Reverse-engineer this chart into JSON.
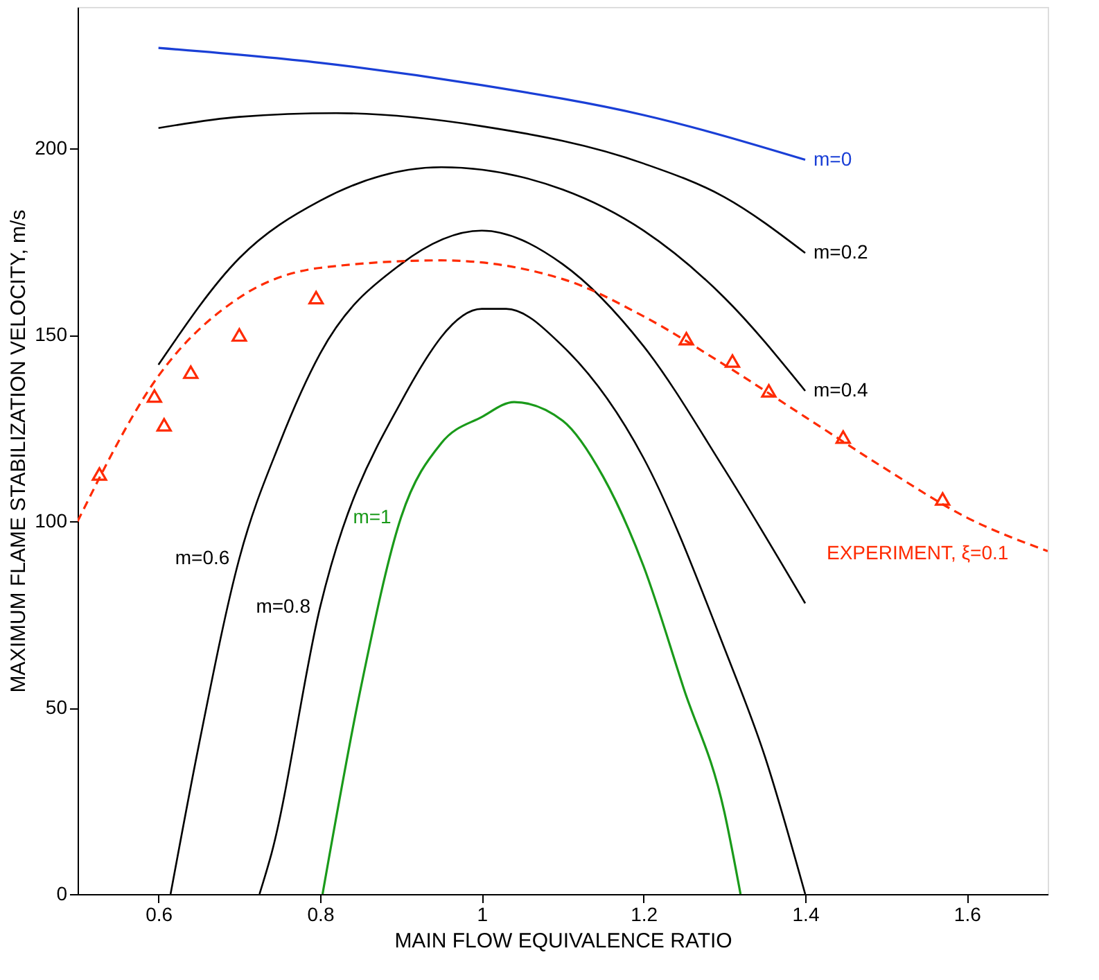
{
  "chart_data": {
    "type": "line",
    "xlabel": "MAIN FLOW EQUIVALENCE RATIO",
    "ylabel": "MAXIMUM FLAME STABILIZATION VELOCITY, m/s",
    "xlim": [
      0.5,
      1.7
    ],
    "ylim": [
      0,
      238
    ],
    "xticks": [
      0.6,
      0.8,
      1,
      1.2,
      1.4,
      1.6
    ],
    "yticks": [
      0,
      50,
      100,
      150,
      200
    ],
    "grid": false,
    "series": [
      {
        "name": "m=0",
        "color": "#1a3fd6",
        "line_style": "solid",
        "x": [
          0.6,
          0.8,
          1.0,
          1.2,
          1.4
        ],
        "values": [
          227,
          223,
          217,
          209,
          197
        ]
      },
      {
        "name": "m=0.2",
        "color": "#000000",
        "line_style": "solid",
        "x": [
          0.6,
          0.7,
          0.82,
          1.0,
          1.2,
          1.3,
          1.4
        ],
        "values": [
          205.5,
          208.5,
          209.5,
          206,
          196,
          187,
          172
        ]
      },
      {
        "name": "m=0.4",
        "color": "#000000",
        "line_style": "solid",
        "x": [
          0.6,
          0.7,
          0.8,
          0.95,
          1.1,
          1.2,
          1.3,
          1.4
        ],
        "values": [
          142,
          170.6,
          186,
          195,
          189,
          178,
          160,
          135
        ]
      },
      {
        "name": "m=0.6",
        "color": "#000000",
        "line_style": "solid",
        "x": [
          0.615,
          0.65,
          0.7,
          0.75,
          0.8,
          0.9,
          1.0,
          1.1,
          1.2,
          1.3,
          1.4
        ],
        "values": [
          0,
          40,
          90,
          121,
          145,
          169,
          178,
          169,
          147,
          114,
          78
        ]
      },
      {
        "name": "m=0.8",
        "color": "#000000",
        "line_style": "solid",
        "x": [
          0.725,
          0.74,
          0.8,
          0.9,
          1.0,
          1.03,
          1.1,
          1.2,
          1.3,
          1.35,
          1.4
        ],
        "values": [
          0,
          11,
          77,
          132,
          157,
          157,
          147,
          117,
          66,
          37,
          0
        ]
      },
      {
        "name": "m=1",
        "color": "#1a9a1a",
        "line_style": "solid",
        "x": [
          0.803,
          0.85,
          0.9,
          0.95,
          1.0,
          1.04,
          1.1,
          1.15,
          1.2,
          1.25,
          1.3,
          1.32
        ],
        "values": [
          0,
          55,
          101,
          121,
          128,
          132,
          127,
          112,
          88,
          55,
          22,
          0
        ]
      },
      {
        "name": "EXPERIMENT, ξ=0.1",
        "color": "#ff2a00",
        "line_style": "dashed",
        "x": [
          0.5,
          0.6,
          0.7,
          0.8,
          0.95,
          1.1,
          1.2,
          1.3,
          1.4,
          1.5,
          1.6,
          1.7
        ],
        "values": [
          100,
          139,
          160,
          168,
          170,
          165,
          155,
          142,
          128,
          114,
          101,
          92
        ]
      },
      {
        "type": "scatter",
        "color": "#ff2a00",
        "marker": "triangle",
        "x": [
          0.527,
          0.595,
          0.607,
          0.64,
          0.7,
          0.795,
          1.253,
          1.31,
          1.355,
          1.447,
          1.57
        ],
        "values": [
          112.7,
          133.6,
          125.9,
          140,
          150,
          160,
          149,
          143,
          135,
          122.6,
          106
        ]
      }
    ]
  }
}
